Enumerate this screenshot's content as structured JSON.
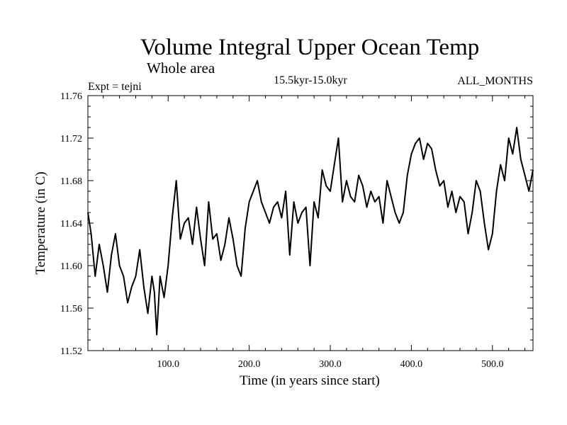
{
  "chart_data": {
    "type": "line",
    "title": "Volume Integral Upper Ocean Temp",
    "subtitle": "Whole area",
    "experiment": "Expt = tejni",
    "period": "15.5kyr-15.0kyr",
    "months": "ALL_MONTHS",
    "xlabel": "Time (in years since start)",
    "ylabel": "Temperature (in C)",
    "xlim": [
      1,
      550
    ],
    "ylim": [
      11.52,
      11.76
    ],
    "xticks": [
      100,
      200,
      300,
      400,
      500
    ],
    "xtick_labels": [
      "100.0",
      "200.0",
      "300.0",
      "400.0",
      "500.0"
    ],
    "yticks": [
      11.52,
      11.56,
      11.6,
      11.64,
      11.68,
      11.72,
      11.76
    ],
    "ytick_labels": [
      "11.52",
      "11.56",
      "11.60",
      "11.64",
      "11.68",
      "11.72",
      "11.76"
    ],
    "grid": false,
    "line_color": "#000000",
    "series": [
      {
        "name": "Temperature",
        "x": [
          1,
          5,
          10,
          15,
          20,
          25,
          30,
          35,
          40,
          45,
          50,
          55,
          60,
          65,
          70,
          75,
          80,
          83,
          86,
          90,
          95,
          100,
          105,
          110,
          115,
          120,
          125,
          130,
          135,
          140,
          145,
          150,
          155,
          160,
          165,
          170,
          175,
          180,
          185,
          190,
          195,
          200,
          205,
          210,
          215,
          220,
          225,
          230,
          235,
          240,
          245,
          250,
          255,
          260,
          265,
          270,
          275,
          280,
          285,
          290,
          295,
          300,
          305,
          310,
          315,
          320,
          325,
          330,
          335,
          340,
          345,
          350,
          355,
          360,
          365,
          370,
          375,
          380,
          385,
          390,
          395,
          400,
          405,
          410,
          415,
          420,
          425,
          430,
          435,
          440,
          445,
          450,
          455,
          460,
          465,
          470,
          475,
          480,
          485,
          490,
          495,
          500,
          505,
          510,
          515,
          520,
          525,
          530,
          535,
          540,
          545,
          550
        ],
        "values": [
          11.65,
          11.63,
          11.59,
          11.62,
          11.6,
          11.575,
          11.61,
          11.63,
          11.6,
          11.59,
          11.565,
          11.58,
          11.59,
          11.615,
          11.58,
          11.555,
          11.59,
          11.575,
          11.535,
          11.59,
          11.57,
          11.6,
          11.645,
          11.68,
          11.625,
          11.64,
          11.645,
          11.62,
          11.655,
          11.625,
          11.6,
          11.66,
          11.625,
          11.63,
          11.605,
          11.62,
          11.645,
          11.625,
          11.6,
          11.59,
          11.635,
          11.66,
          11.67,
          11.68,
          11.66,
          11.65,
          11.64,
          11.655,
          11.66,
          11.645,
          11.67,
          11.61,
          11.66,
          11.64,
          11.65,
          11.655,
          11.6,
          11.66,
          11.645,
          11.69,
          11.675,
          11.67,
          11.695,
          11.72,
          11.66,
          11.68,
          11.665,
          11.66,
          11.685,
          11.675,
          11.655,
          11.67,
          11.66,
          11.665,
          11.64,
          11.68,
          11.665,
          11.65,
          11.64,
          11.65,
          11.685,
          11.705,
          11.715,
          11.72,
          11.7,
          11.715,
          11.71,
          11.69,
          11.675,
          11.68,
          11.655,
          11.67,
          11.65,
          11.665,
          11.66,
          11.63,
          11.65,
          11.68,
          11.67,
          11.64,
          11.615,
          11.63,
          11.67,
          11.695,
          11.68,
          11.72,
          11.705,
          11.73,
          11.7,
          11.685,
          11.67,
          11.69
        ]
      }
    ]
  }
}
